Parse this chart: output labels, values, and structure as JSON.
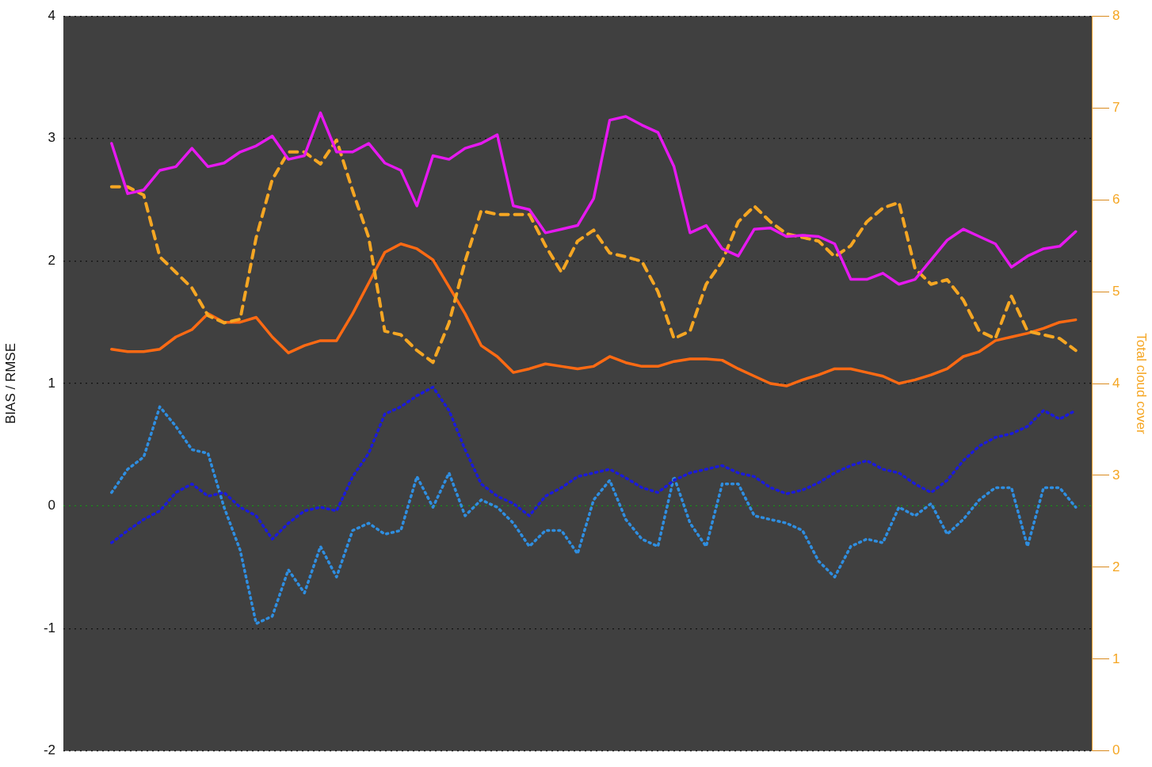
{
  "chart_data": {
    "type": "line",
    "ylabel": "BIAS / RMSE",
    "y2label": "Total cloud cover",
    "categories": [
      null,
      null,
      null,
      null,
      null,
      null,
      null,
      null,
      null,
      null,
      null,
      null,
      null,
      null,
      null,
      null,
      null,
      null,
      null,
      null,
      null,
      null,
      null,
      null,
      null,
      null,
      null,
      null,
      null,
      null,
      null,
      null,
      null,
      null,
      null,
      null,
      null,
      null,
      null,
      null,
      null,
      null,
      null,
      null,
      null,
      null,
      null,
      null,
      null,
      null,
      null,
      null,
      null,
      null,
      null,
      null,
      null,
      null,
      null,
      null,
      null,
      null,
      null,
      null,
      null
    ],
    "ylim": [
      -2,
      4
    ],
    "yticks": [
      -2,
      -1,
      0,
      1,
      2,
      3,
      4
    ],
    "y2lim": [
      0,
      8
    ],
    "y2ticks": [
      0,
      1,
      2,
      3,
      4,
      5,
      6,
      7,
      8
    ],
    "grid": "y",
    "ref_lines": [
      {
        "axis": "y",
        "value": 0,
        "color": "#1f8a1f",
        "line_style": "dotted"
      }
    ],
    "series": [
      {
        "color": "#e619f0",
        "line_style": "solid",
        "values": [
          null,
          null,
          null,
          2.96,
          2.55,
          2.58,
          2.74,
          2.77,
          2.92,
          2.77,
          2.8,
          2.89,
          2.94,
          3.02,
          2.83,
          2.86,
          3.21,
          2.89,
          2.89,
          2.96,
          2.8,
          2.74,
          2.45,
          2.86,
          2.83,
          2.92,
          2.96,
          3.03,
          2.45,
          2.42,
          2.23,
          2.26,
          2.29,
          2.51,
          3.15,
          3.18,
          3.11,
          3.05,
          2.77,
          2.23,
          2.29,
          2.1,
          2.04,
          2.26,
          2.27,
          2.2,
          2.21,
          2.2,
          2.14,
          1.85,
          1.85,
          1.9,
          1.81,
          1.85,
          2.01,
          2.17,
          2.26,
          2.2,
          2.14,
          1.95,
          2.04,
          2.1,
          2.12,
          2.24,
          null
        ]
      },
      {
        "color": "#f5a623",
        "line_style": "dashed",
        "axis": "y2",
        "values": [
          null,
          null,
          null,
          6.14,
          6.14,
          6.05,
          5.38,
          5.21,
          5.04,
          4.74,
          4.66,
          4.7,
          5.59,
          6.22,
          6.52,
          6.52,
          6.39,
          6.65,
          6.1,
          5.59,
          4.57,
          4.53,
          4.36,
          4.23,
          4.66,
          5.33,
          5.88,
          5.84,
          5.84,
          5.84,
          5.5,
          5.21,
          5.55,
          5.67,
          5.42,
          5.38,
          5.33,
          5.0,
          4.49,
          4.57,
          5.08,
          5.33,
          5.76,
          5.93,
          5.76,
          5.63,
          5.59,
          5.55,
          5.38,
          5.5,
          5.76,
          5.91,
          5.97,
          5.25,
          5.08,
          5.13,
          4.91,
          4.57,
          4.49,
          4.95,
          4.57,
          4.53,
          4.49,
          4.36,
          null
        ]
      },
      {
        "color": "#ff6a13",
        "line_style": "solid",
        "values": [
          null,
          null,
          null,
          1.28,
          1.26,
          1.26,
          1.28,
          1.38,
          1.44,
          1.57,
          1.5,
          1.5,
          1.54,
          1.38,
          1.25,
          1.31,
          1.35,
          1.35,
          1.57,
          1.82,
          2.07,
          2.14,
          2.1,
          2.01,
          1.79,
          1.57,
          1.31,
          1.22,
          1.09,
          1.12,
          1.16,
          1.14,
          1.12,
          1.14,
          1.22,
          1.17,
          1.14,
          1.14,
          1.18,
          1.2,
          1.2,
          1.19,
          1.12,
          1.06,
          1.0,
          0.98,
          1.03,
          1.07,
          1.12,
          1.12,
          1.09,
          1.06,
          1.0,
          1.03,
          1.07,
          1.12,
          1.22,
          1.26,
          1.35,
          1.38,
          1.41,
          1.45,
          1.5,
          1.52,
          null
        ]
      },
      {
        "color": "#1a1adb",
        "line_style": "dotted",
        "values": [
          null,
          null,
          null,
          -0.3,
          -0.2,
          -0.11,
          -0.04,
          0.11,
          0.18,
          0.08,
          0.11,
          -0.01,
          -0.08,
          -0.27,
          -0.14,
          -0.04,
          -0.01,
          -0.04,
          0.24,
          0.43,
          0.75,
          0.81,
          0.9,
          0.97,
          0.78,
          0.46,
          0.18,
          0.08,
          0.02,
          -0.08,
          0.08,
          0.15,
          0.24,
          0.27,
          0.3,
          0.23,
          0.15,
          0.11,
          0.21,
          0.27,
          0.3,
          0.33,
          0.27,
          0.24,
          0.15,
          0.1,
          0.13,
          0.19,
          0.27,
          0.33,
          0.37,
          0.3,
          0.27,
          0.18,
          0.11,
          0.21,
          0.37,
          0.49,
          0.56,
          0.59,
          0.65,
          0.78,
          0.71,
          0.78,
          null
        ]
      },
      {
        "color": "#2f8ee0",
        "line_style": "dotted",
        "values": [
          null,
          null,
          null,
          0.11,
          0.3,
          0.4,
          0.81,
          0.65,
          0.46,
          0.43,
          -0.01,
          -0.36,
          -0.96,
          -0.9,
          -0.52,
          -0.71,
          -0.33,
          -0.58,
          -0.2,
          -0.14,
          -0.23,
          -0.2,
          0.24,
          -0.01,
          0.27,
          -0.08,
          0.05,
          -0.01,
          -0.14,
          -0.33,
          -0.2,
          -0.2,
          -0.39,
          0.05,
          0.21,
          -0.11,
          -0.27,
          -0.33,
          0.24,
          -0.14,
          -0.33,
          0.18,
          0.18,
          -0.08,
          -0.11,
          -0.14,
          -0.2,
          -0.45,
          -0.58,
          -0.33,
          -0.27,
          -0.3,
          -0.01,
          -0.08,
          0.02,
          -0.23,
          -0.11,
          0.05,
          0.15,
          0.15,
          -0.33,
          0.15,
          0.15,
          -0.01,
          null
        ]
      }
    ]
  }
}
